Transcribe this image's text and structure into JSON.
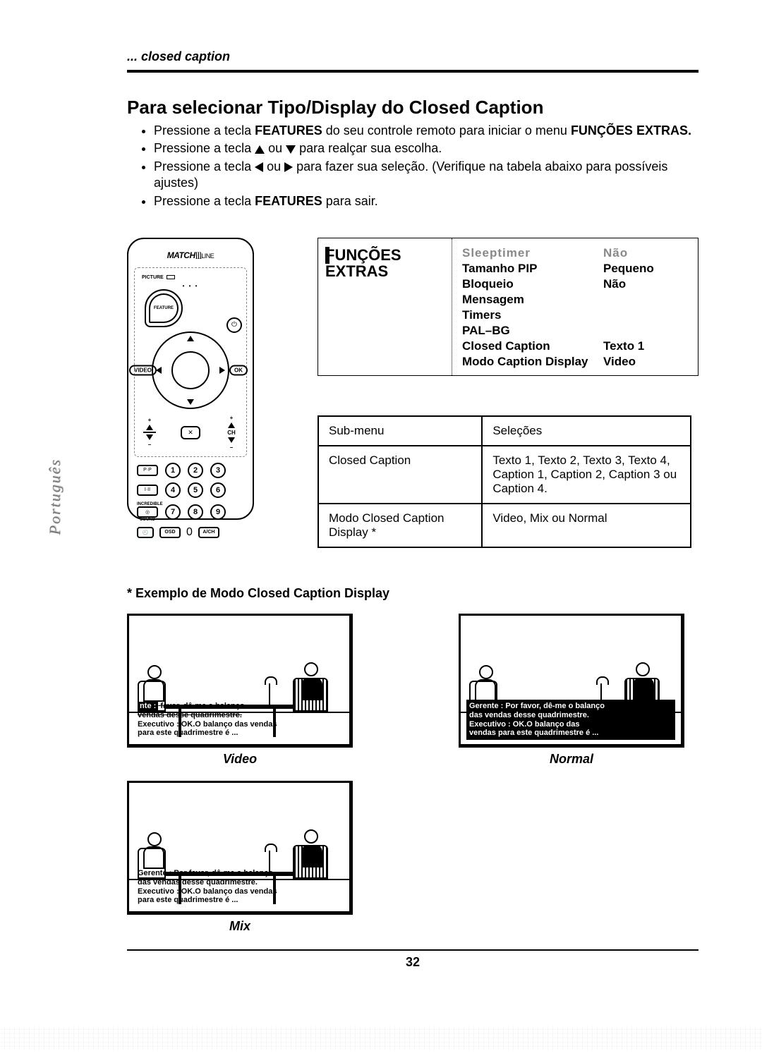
{
  "sideLabel": "Português",
  "breadcrumb": "... closed caption",
  "title": "Para selecionar Tipo/Display do Closed Caption",
  "bullets": {
    "b1a": "Pressione a tecla ",
    "b1b": "FEATURES",
    "b1c": " do seu controle remoto para iniciar o menu ",
    "b1d": "FUNÇÕES EXTRAS.",
    "b2a": "Pressione a tecla ",
    "b2b": " ou ",
    "b2c": " para realçar sua escolha.",
    "b3a": "Pressione a tecla ",
    "b3b": " ou ",
    "b3c": " para fazer sua seleção. (Verifique na tabela abaixo para possíveis ajustes)",
    "b4a": "Pressione a tecla ",
    "b4b": "FEATURES",
    "b4c": " para sair."
  },
  "remote": {
    "brand": "MATCH",
    "brandSuffix": "LINE",
    "picture": "PICTURE",
    "feature": "FEATURE",
    "video": "VIDEO",
    "ok": "OK",
    "ch": "CH",
    "mute": "✕",
    "incredible": "INCREDIBLE",
    "sound": "SOUND",
    "osd": "OSD",
    "ach": "A/CH",
    "pwr": "⏻",
    "sideIcons": {
      "pp": "P·P",
      "ii": "I·II",
      "cc": "◎",
      "clock": "🕘"
    },
    "nums": [
      "1",
      "2",
      "3",
      "4",
      "5",
      "6",
      "7",
      "8",
      "9",
      "0"
    ]
  },
  "osd": {
    "panelTitle1": "FUNÇÕES",
    "panelTitle2": "EXTRAS",
    "rows": [
      {
        "k": "Sleeptimer",
        "v": "Não",
        "faded": true
      },
      {
        "k": "Tamanho PIP",
        "v": "Pequeno"
      },
      {
        "k": "Bloqueio",
        "v": "Não"
      },
      {
        "k": "Mensagem",
        "v": ""
      },
      {
        "k": "Timers",
        "v": ""
      },
      {
        "k": "PAL–BG",
        "v": ""
      },
      {
        "k": "Closed Caption",
        "v": "Texto 1"
      },
      {
        "k": "Modo Caption Display",
        "v": "Video"
      }
    ]
  },
  "subtable": {
    "h1": "Sub-menu",
    "h2": "Seleções",
    "r1k": "Closed Caption",
    "r1v": "Texto 1, Texto 2, Texto 3, Texto 4, Caption 1, Caption 2, Caption 3 ou Caption 4.",
    "r2k": "Modo Closed Caption Display *",
    "r2v": "Video, Mix ou Normal"
  },
  "footnote": "* Exemplo de Modo Closed Caption Display",
  "example": {
    "line1": "Gerente : Por favor, dê-me o balanço",
    "line2": "das vendas desse quadrimestre.",
    "line3": "Executivo : OK.O balanço das vendas",
    "line4": "para este quadrimestre é ...",
    "line3b": "Executivo : OK.O balanço das",
    "line4b": "vendas para este quadrimestre é ...",
    "capVideo": "Video",
    "capNormal": "Normal",
    "capMix": "Mix"
  },
  "pageNumber": "32"
}
